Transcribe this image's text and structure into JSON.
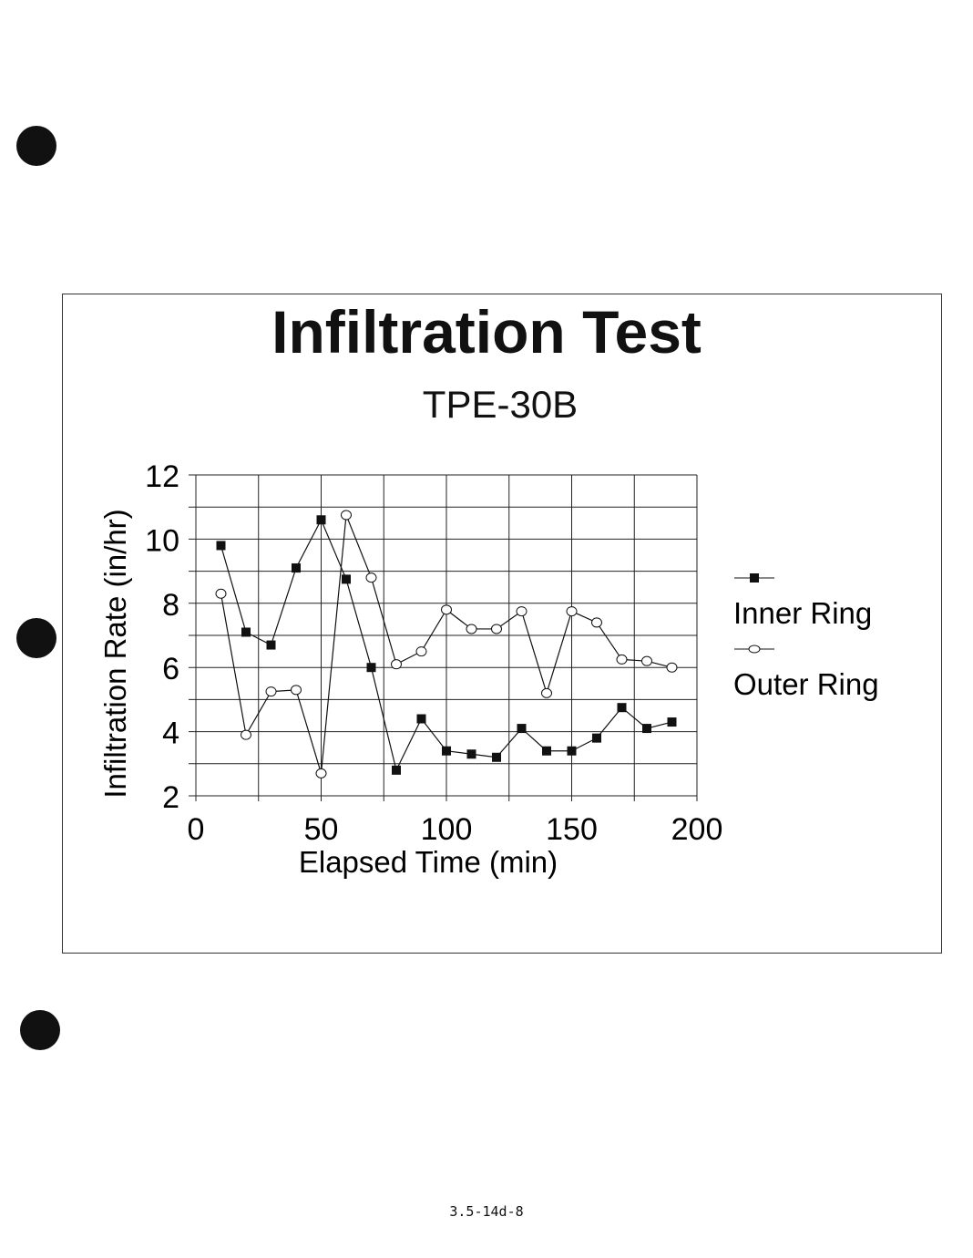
{
  "page_number": "3.5-14d-8",
  "chart_data": {
    "type": "line",
    "title": "Infiltration Test",
    "subtitle": "TPE-30B",
    "xlabel": "Elapsed Time (min)",
    "ylabel": "Infiltration Rate (in/hr)",
    "xlim": [
      0,
      200
    ],
    "ylim": [
      2,
      12
    ],
    "xticks": [
      "0",
      "50",
      "100",
      "150",
      "200"
    ],
    "yticks": [
      "2",
      "4",
      "6",
      "8",
      "10",
      "12"
    ],
    "grid": true,
    "legend_position": "right",
    "x": [
      10,
      20,
      30,
      40,
      50,
      60,
      70,
      80,
      90,
      100,
      110,
      120,
      130,
      140,
      150,
      160,
      170,
      180,
      190
    ],
    "series": [
      {
        "name": "Inner Ring",
        "marker": "filled-square",
        "values": [
          9.8,
          7.1,
          6.7,
          9.1,
          10.6,
          8.75,
          6.0,
          2.8,
          4.4,
          3.4,
          3.3,
          3.2,
          4.1,
          3.4,
          3.4,
          3.8,
          4.75,
          4.1,
          4.3
        ]
      },
      {
        "name": "Outer Ring",
        "marker": "open-circle",
        "values": [
          8.3,
          3.9,
          5.25,
          5.3,
          2.7,
          10.75,
          8.8,
          6.1,
          6.5,
          7.8,
          7.2,
          7.2,
          7.75,
          5.2,
          7.75,
          7.4,
          6.25,
          6.2,
          6.0
        ]
      }
    ]
  }
}
